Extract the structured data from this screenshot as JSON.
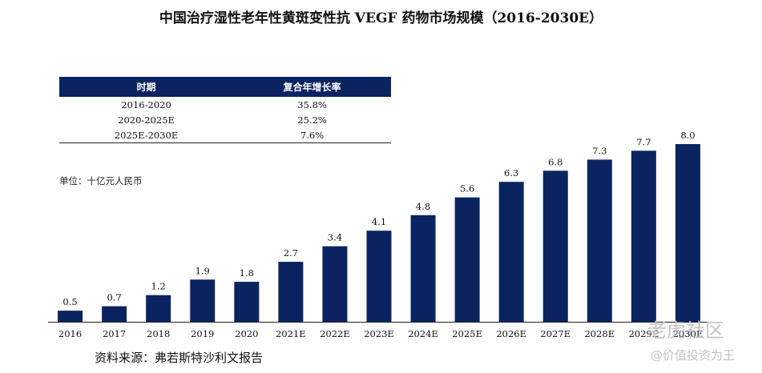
{
  "title": "中国治疗湿性老年性黄斑变性抗 VEGF 药物市场规模（2016-2030E）",
  "table": {
    "headers": [
      "时期",
      "复合年增长率"
    ],
    "rows": [
      [
        "2016-2020",
        "35.8%"
      ],
      [
        "2020-2025E",
        "25.2%"
      ],
      [
        "2025E-2030E",
        "7.6%"
      ]
    ]
  },
  "unit_label": "单位：十亿元人民币",
  "source": "资料来源：弗若斯特沙利文报告",
  "watermark": {
    "line1": "老虎社区",
    "line2": "@价值投资为王"
  },
  "colors": {
    "bar": "#0b2461",
    "header_bg": "#0b2461"
  },
  "chart_data": {
    "type": "bar",
    "title": "中国治疗湿性老年性黄斑变性抗 VEGF 药物市场规模（2016-2030E）",
    "categories": [
      "2016",
      "2017",
      "2018",
      "2019",
      "2020",
      "2021E",
      "2022E",
      "2023E",
      "2024E",
      "2025E",
      "2026E",
      "2027E",
      "2028E",
      "2029E",
      "2030E"
    ],
    "values": [
      0.5,
      0.7,
      1.2,
      1.9,
      1.8,
      2.7,
      3.4,
      4.1,
      4.8,
      5.6,
      6.3,
      6.8,
      7.3,
      7.7,
      8.0
    ],
    "data_labels": [
      "0.5",
      "0.7",
      "1.2",
      "1.9",
      "1.8",
      "2.7",
      "3.4",
      "4.1",
      "4.8",
      "5.6",
      "6.3",
      "6.8",
      "7.3",
      "7.7",
      "8.0"
    ],
    "ylabel": "单位：十亿元人民币",
    "ylim": [
      0,
      8.0
    ],
    "grid": false,
    "legend": "none"
  }
}
